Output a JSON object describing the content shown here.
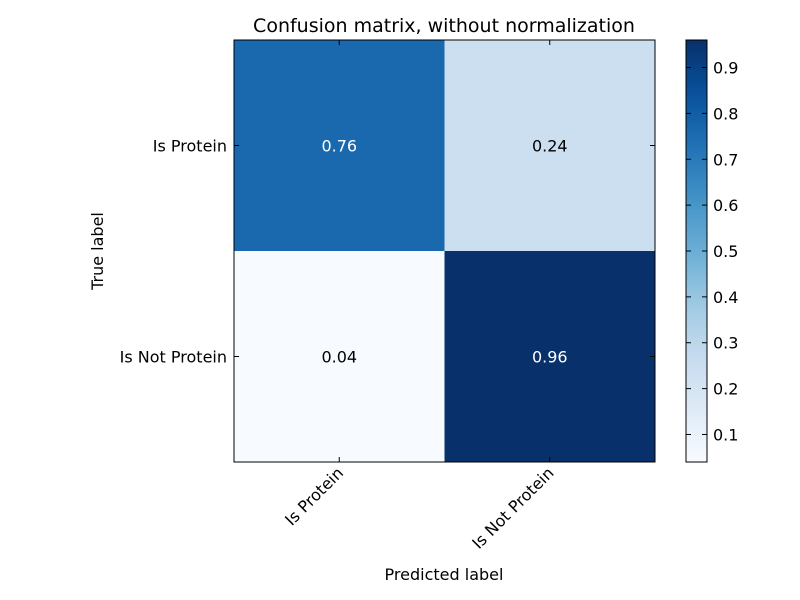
{
  "chart_data": {
    "type": "heatmap",
    "title": "Confusion matrix, without normalization",
    "xlabel": "Predicted label",
    "ylabel": "True label",
    "x_categories": [
      "Is Protein",
      "Is Not Protein"
    ],
    "y_categories": [
      "Is Protein",
      "Is Not Protein"
    ],
    "values": [
      [
        0.76,
        0.24
      ],
      [
        0.04,
        0.96
      ]
    ],
    "cell_labels": [
      [
        "0.76",
        "0.24"
      ],
      [
        "0.04",
        "0.96"
      ]
    ],
    "colormap": "Blues",
    "colorbar": {
      "range": [
        0.04,
        0.96
      ],
      "ticks": [
        0.1,
        0.2,
        0.3,
        0.4,
        0.5,
        0.6,
        0.7,
        0.8,
        0.9
      ],
      "tick_labels": [
        "0.1",
        "0.2",
        "0.3",
        "0.4",
        "0.5",
        "0.6",
        "0.7",
        "0.8",
        "0.9"
      ]
    },
    "x_tick_rotation_deg": 45,
    "grid": false,
    "colors": {
      "colormap_stops": [
        "#f7fbff",
        "#deebf7",
        "#c6dbef",
        "#9ecae1",
        "#6baed6",
        "#4292c6",
        "#2171b5",
        "#08519c",
        "#08306b"
      ],
      "frame": "#000000",
      "text": "#000000",
      "cell_text_dark_bg": "#ffffff",
      "cell_text_light_bg": "#000000"
    }
  }
}
